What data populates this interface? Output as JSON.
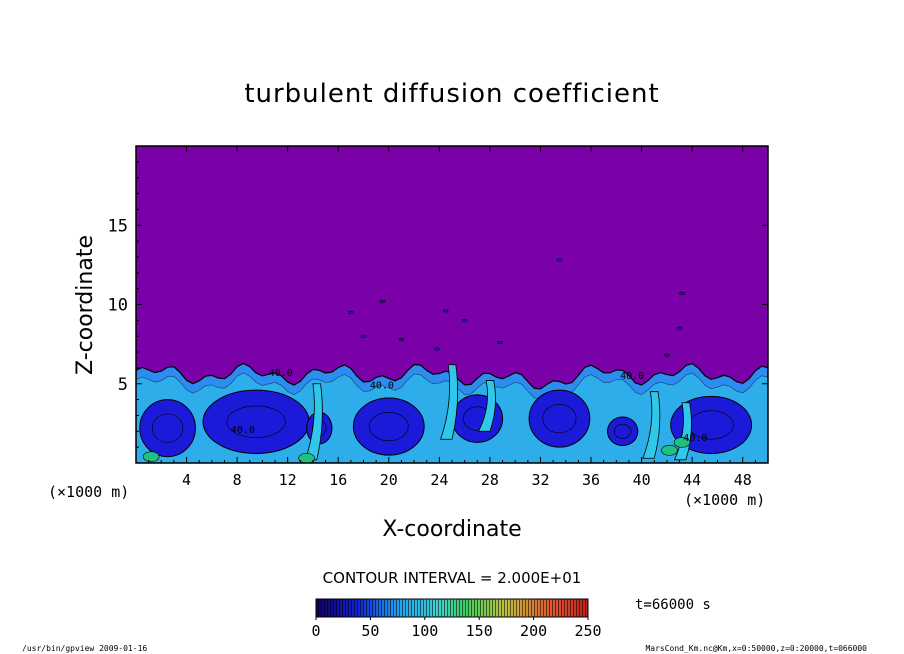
{
  "chart_data": {
    "type": "heatmap",
    "title": "turbulent diffusion coefficient",
    "xlabel": "X-coordinate",
    "ylabel": "Z-coordinate",
    "x_unit_left": "(×1000 m)",
    "x_unit_right": "(×1000 m)",
    "xlim": [
      0,
      50
    ],
    "ylim": [
      0,
      20
    ],
    "x_ticks": [
      "4",
      "8",
      "12",
      "16",
      "20",
      "24",
      "28",
      "32",
      "36",
      "40",
      "44",
      "48"
    ],
    "y_ticks": [
      "5",
      "10",
      "15"
    ],
    "contour_interval_label": "CONTOUR INTERVAL = 2.000E+01",
    "contour_labels": [
      "40.0",
      "40.0",
      "40.0",
      "40.0",
      "40.0"
    ],
    "colorbar": {
      "ticks": [
        "0",
        "50",
        "100",
        "150",
        "200",
        "250"
      ],
      "min": 0,
      "max": 250
    },
    "time_label": "t=66000 s",
    "footer_left": "/usr/bin/gpview   2009-01-16",
    "footer_right": "MarsCond_Km.nc@Km,x=0:50000,z=0:20000,t=066000",
    "colors": {
      "background_field": "#7a00a8",
      "low": "#1a1ad8",
      "mid": "#2c8cf0",
      "cyan": "#30c8e8",
      "green": "#20c080",
      "high": "#c03020"
    }
  }
}
